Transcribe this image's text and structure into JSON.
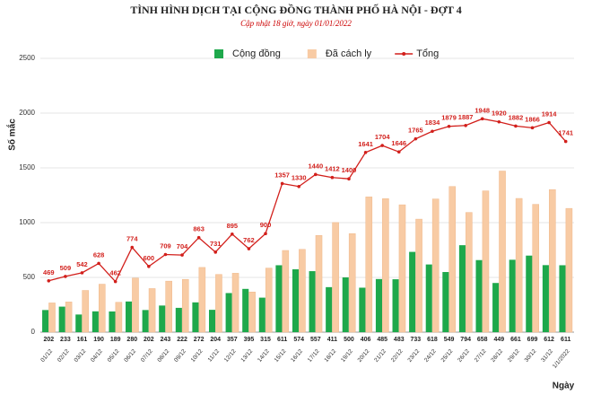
{
  "chart_data": {
    "type": "bar",
    "title": "TÌNH HÌNH DỊCH TẠI CỘNG ĐỒNG THÀNH PHỐ HÀ NỘI - ĐỢT 4",
    "subtitle": "Cập nhật 18 giờ, ngày 01/01/2022",
    "y_label": "Số mắc",
    "x_label": "Ngày",
    "categories": [
      "01/12",
      "02/12",
      "03/12",
      "04/12",
      "05/12",
      "06/12",
      "07/12",
      "08/12",
      "09/12",
      "10/12",
      "11/12",
      "12/12",
      "13/12",
      "14/12",
      "15/12",
      "16/12",
      "17/12",
      "18/12",
      "19/12",
      "20/12",
      "21/12",
      "22/12",
      "23/12",
      "24/12",
      "25/12",
      "26/12",
      "27/12",
      "28/12",
      "29/12",
      "30/12",
      "31/12",
      "1/1/2022"
    ],
    "series": [
      {
        "name": "Cộng đồng",
        "type": "bar",
        "color": "#1ea84b",
        "labels": true,
        "values": [
          202,
          233,
          161,
          190,
          189,
          280,
          202,
          243,
          222,
          272,
          204,
          357,
          395,
          315,
          611,
          574,
          557,
          411,
          500,
          406,
          485,
          483,
          733,
          618,
          549,
          794,
          658,
          449,
          661,
          699,
          612,
          611
        ]
      },
      {
        "name": "Đã cách ly",
        "type": "bar",
        "color": "#f8cba4",
        "labels": false,
        "values": [
          267,
          276,
          381,
          438,
          273,
          494,
          398,
          466,
          482,
          591,
          527,
          538,
          367,
          585,
          746,
          756,
          883,
          1001,
          900,
          1235,
          1219,
          1163,
          1032,
          1216,
          1330,
          1093,
          1290,
          1471,
          1221,
          1167,
          1302,
          1130
        ]
      },
      {
        "name": "Tổng",
        "type": "line",
        "color": "#d21f1b",
        "labels": true,
        "values": [
          469,
          509,
          542,
          628,
          462,
          774,
          600,
          709,
          704,
          863,
          731,
          895,
          762,
          900,
          1357,
          1330,
          1440,
          1412,
          1400,
          1641,
          1704,
          1646,
          1765,
          1834,
          1879,
          1887,
          1948,
          1920,
          1882,
          1866,
          1914,
          1741
        ]
      }
    ],
    "ylim": [
      0,
      2500
    ],
    "yticks": [
      0,
      500,
      1000,
      1500,
      2000,
      2500
    ],
    "grid": true
  }
}
